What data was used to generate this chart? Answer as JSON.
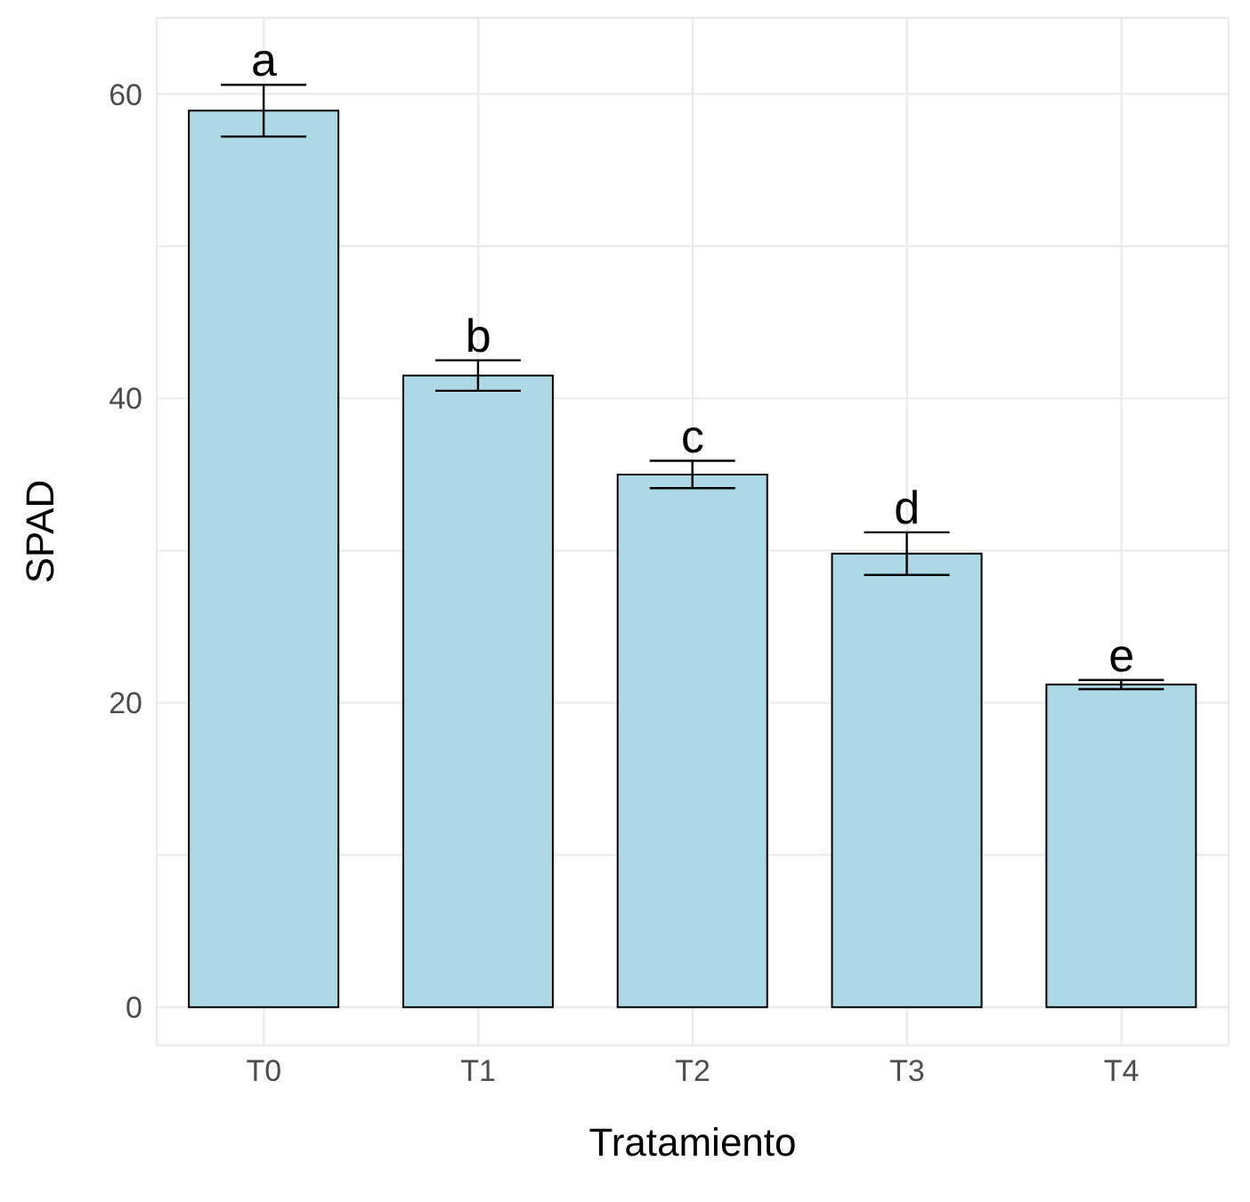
{
  "chart_data": {
    "type": "bar",
    "xlabel": "Tratamiento",
    "ylabel": "SPAD",
    "categories": [
      "T0",
      "T1",
      "T2",
      "T3",
      "T4"
    ],
    "values": [
      58.9,
      41.5,
      35.0,
      29.8,
      21.2
    ],
    "errors": [
      1.7,
      1.0,
      0.9,
      1.4,
      0.3
    ],
    "color": "#add8e6",
    "ylim": [
      -2.5,
      65
    ],
    "yticks": [
      0,
      {
        "value": 10,
        "label": null
      },
      20,
      {
        "value": 30,
        "label": null
      },
      40,
      {
        "value": 50,
        "label": null
      },
      60
    ],
    "grid": true,
    "annotations": [
      {
        "text": "a",
        "x": "T0",
        "y": 60.6
      },
      {
        "text": "b",
        "x": "T1",
        "y": 42.5
      },
      {
        "text": "c",
        "x": "T2",
        "y": 35.9
      },
      {
        "text": "d",
        "x": "T3",
        "y": 31.2
      },
      {
        "text": "e",
        "x": "T4",
        "y": 21.5
      }
    ]
  }
}
